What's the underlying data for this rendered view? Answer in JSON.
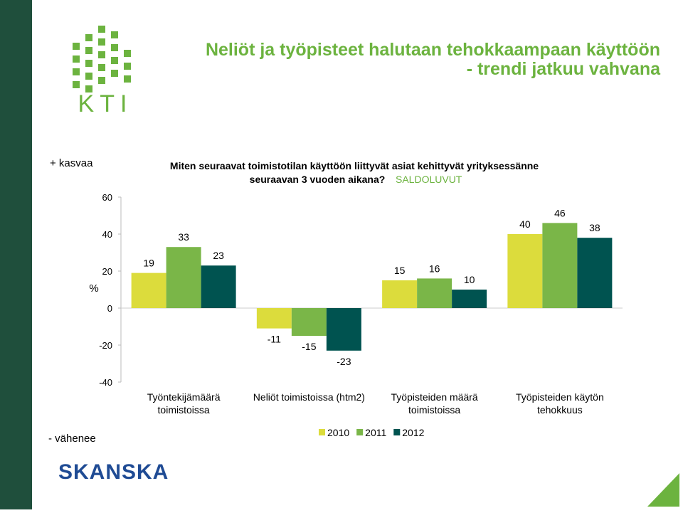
{
  "header": {
    "title": "Neliöt ja työpisteet halutaan tehokkaampaan käyttöön",
    "subtitle": "- trendi jatkuu vahvana",
    "logo": "KTI",
    "footer_logo": "SKANSKA"
  },
  "chart_data": {
    "type": "bar",
    "title": "Miten seuraavat toimistotilan käyttöön liittyvät asiat kehittyvät yrityksessänne",
    "title_line2": "seuraavan 3 vuoden aikana?",
    "title_tag": "SALDOLUVUT",
    "y_label": "%",
    "top_note": "+ kasvaa",
    "bottom_note": "- vähenee",
    "categories": [
      "Työntekijämäärä\ntoimistoissa",
      "Neliöt toimistoissa (htm2)",
      "Työpisteiden määrä\ntoimistoissa",
      "Työpisteiden käytön\ntehokkuus"
    ],
    "series": [
      {
        "name": "2010",
        "color": "#dcdc3c",
        "values": [
          19,
          -11,
          15,
          40
        ]
      },
      {
        "name": "2011",
        "color": "#7ab648",
        "values": [
          33,
          -15,
          16,
          46
        ]
      },
      {
        "name": "2012",
        "color": "#005350",
        "values": [
          23,
          -23,
          10,
          38
        ]
      }
    ],
    "ylim": [
      -40,
      60
    ],
    "yticks": [
      -40,
      -20,
      0,
      20,
      40,
      60
    ],
    "legend": "bottom"
  }
}
